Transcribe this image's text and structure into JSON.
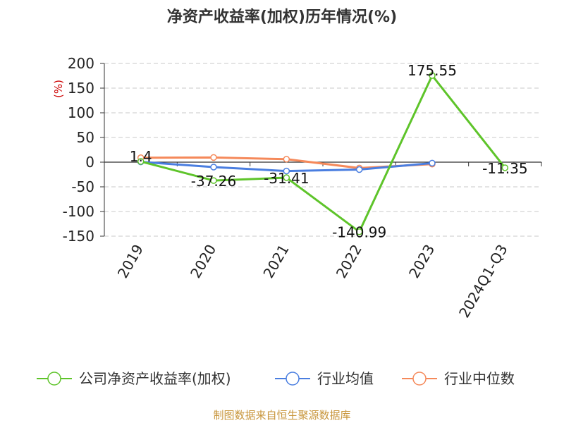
{
  "chart_data": {
    "type": "line",
    "title": "净资产收益率(加权)历年情况(%)",
    "unit_label": "(%)",
    "categories": [
      "2019",
      "2020",
      "2021",
      "2022",
      "2023",
      "2024Q1-Q3"
    ],
    "ylim": [
      -150,
      200
    ],
    "yticks": [
      200,
      150,
      100,
      50,
      0,
      -50,
      -100,
      -150
    ],
    "grid": true,
    "legend_position": "bottom",
    "series": [
      {
        "name": "公司净资产收益率(加权)",
        "color": "#5ec42a",
        "values": [
          1.4,
          -37.26,
          -31.41,
          -140.99,
          175.55,
          -11.35
        ],
        "labels": [
          "1.4",
          "-37.26",
          "-31.41",
          "-140.99",
          "175.55",
          "-11.35"
        ]
      },
      {
        "name": "行业均值",
        "color": "#4a7ee0",
        "values": [
          0.5,
          -10,
          -18,
          -15,
          -2,
          null
        ]
      },
      {
        "name": "行业中位数",
        "color": "#f5895a",
        "values": [
          9,
          9.5,
          6,
          -12,
          -4,
          null
        ]
      }
    ]
  },
  "source": "制图数据来自恒生聚源数据库"
}
